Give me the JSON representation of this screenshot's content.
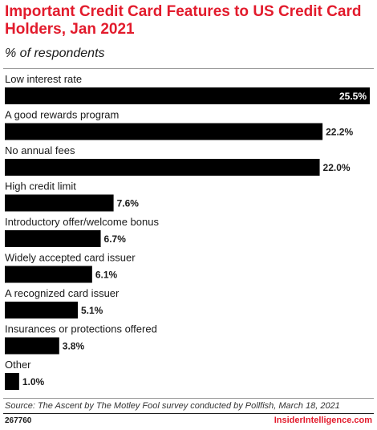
{
  "chart_data": {
    "type": "bar",
    "orientation": "horizontal",
    "title": "Important Credit Card Features to US Credit Card Holders, Jan 2021",
    "subtitle": "% of respondents",
    "categories": [
      "Low interest rate",
      "A good rewards program",
      "No annual fees",
      "High credit limit",
      "Introductory offer/welcome bonus",
      "Widely accepted card issuer",
      "A recognized card issuer",
      "Insurances or protections offered",
      "Other"
    ],
    "values": [
      25.5,
      22.2,
      22.0,
      7.6,
      6.7,
      6.1,
      5.1,
      3.8,
      1.0
    ],
    "value_labels": [
      "25.5%",
      "22.2%",
      "22.0%",
      "7.6%",
      "6.7%",
      "6.1%",
      "5.1%",
      "3.8%",
      "1.0%"
    ],
    "xlim": [
      0,
      25.5
    ],
    "grid": false,
    "legend": "none",
    "bar_color": "#000000"
  },
  "footer": {
    "source": "Source: The Ascent by The Motley Fool survey conducted by Pollfish, March 18, 2021",
    "chart_id": "267760",
    "brand": "InsiderIntelligence.com"
  },
  "colors": {
    "title": "#e21b2c",
    "bars": "#000000",
    "brand": "#e21b2c"
  }
}
